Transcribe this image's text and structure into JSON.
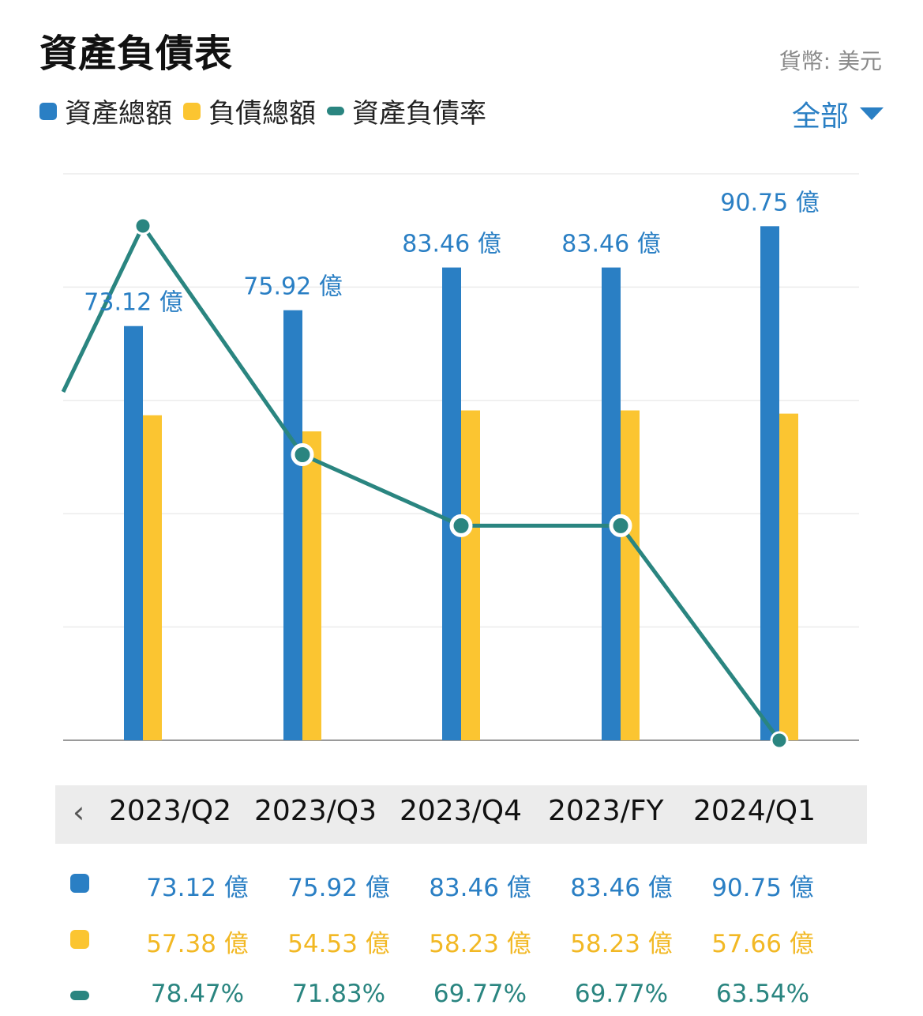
{
  "header": {
    "title": "資產負債表",
    "currency": "貨幣: 美元",
    "filter_label": "全部"
  },
  "legend": [
    {
      "label": "資產總額",
      "color": "#2a7fc4",
      "shape": "square"
    },
    {
      "label": "負債總額",
      "color": "#fbc531",
      "shape": "square"
    },
    {
      "label": "資產負債率",
      "color": "#2a8580",
      "shape": "line"
    }
  ],
  "nav": {
    "prev_icon": "‹"
  },
  "chart_data": {
    "type": "bar",
    "categories": [
      "2023/Q2",
      "2023/Q3",
      "2023/Q4",
      "2023/FY",
      "2024/Q1"
    ],
    "series": [
      {
        "name": "資產總額",
        "unit": "億",
        "values": [
          73.12,
          75.92,
          83.46,
          83.46,
          90.75
        ],
        "color": "#2a7fc4",
        "labels": [
          "73.12 億",
          "75.92 億",
          "83.46 億",
          "83.46 億",
          "90.75 億"
        ]
      },
      {
        "name": "負債總額",
        "unit": "億",
        "values": [
          57.38,
          54.53,
          58.23,
          58.23,
          57.66
        ],
        "color": "#fbc531"
      },
      {
        "name": "資產負債率",
        "type": "line",
        "unit": "%",
        "values": [
          78.47,
          71.83,
          69.77,
          69.77,
          63.54
        ],
        "color": "#2a8580"
      }
    ],
    "ylim_bars": [
      0,
      100
    ],
    "ylim_ratio": [
      63.54,
      78.47
    ],
    "grid": true
  },
  "table": {
    "rows": [
      {
        "key": "assets",
        "color": "#2a7fc4",
        "text_color": "#2a7fc4",
        "marker": "square",
        "values": [
          "73.12 億",
          "75.92 億",
          "83.46 億",
          "83.46 億",
          "90.75 億"
        ]
      },
      {
        "key": "liabilities",
        "color": "#fbc531",
        "text_color": "#f2b824",
        "marker": "square",
        "values": [
          "57.38 億",
          "54.53 億",
          "58.23 億",
          "58.23 億",
          "57.66 億"
        ]
      },
      {
        "key": "ratio",
        "color": "#2a8580",
        "text_color": "#2a8580",
        "marker": "line",
        "values": [
          "78.47%",
          "71.83%",
          "69.77%",
          "69.77%",
          "63.54%"
        ]
      }
    ]
  }
}
